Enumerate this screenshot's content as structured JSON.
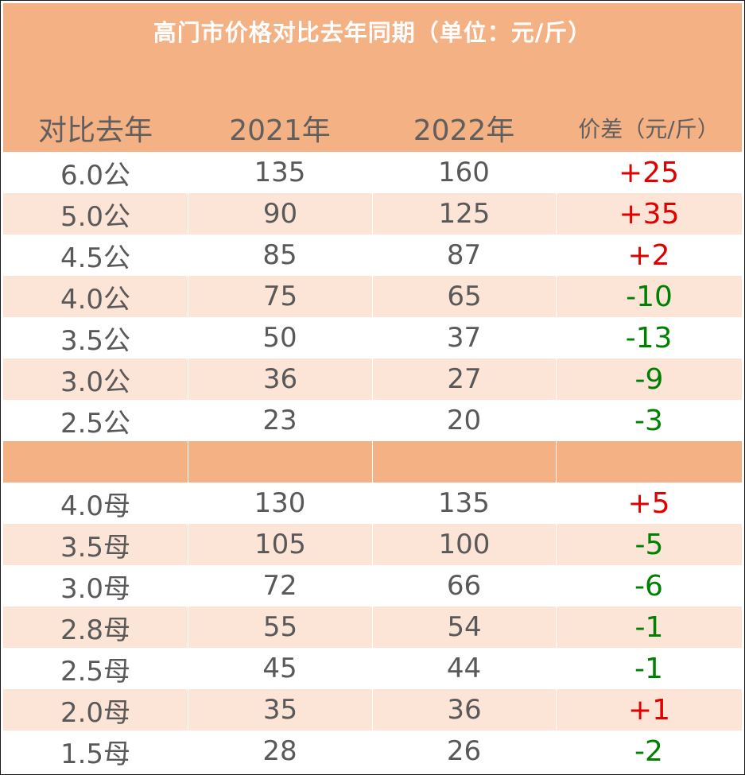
{
  "title": "高门市价格对比去年同期（单位：元/斤）",
  "headers": [
    "对比去年",
    "2021年",
    "2022年",
    "价差（元/斤）"
  ],
  "colors": {
    "header_bg": "#f4b184",
    "alt_row_bg": "#fce4d6",
    "text": "#595959",
    "positive": "#e00000",
    "negative": "#008000"
  },
  "group1": [
    {
      "spec": "6.0公",
      "y2021": "135",
      "y2022": "160",
      "diff": "+25"
    },
    {
      "spec": "5.0公",
      "y2021": "90",
      "y2022": "125",
      "diff": "+35"
    },
    {
      "spec": "4.5公",
      "y2021": "85",
      "y2022": "87",
      "diff": "+2"
    },
    {
      "spec": "4.0公",
      "y2021": "75",
      "y2022": "65",
      "diff": "-10"
    },
    {
      "spec": "3.5公",
      "y2021": "50",
      "y2022": "37",
      "diff": "-13"
    },
    {
      "spec": "3.0公",
      "y2021": "36",
      "y2022": "27",
      "diff": "-9"
    },
    {
      "spec": "2.5公",
      "y2021": "23",
      "y2022": "20",
      "diff": "-3"
    }
  ],
  "group2": [
    {
      "spec": "4.0母",
      "y2021": "130",
      "y2022": "135",
      "diff": "+5"
    },
    {
      "spec": "3.5母",
      "y2021": "105",
      "y2022": "100",
      "diff": "-5"
    },
    {
      "spec": "3.0母",
      "y2021": "72",
      "y2022": "66",
      "diff": "-6"
    },
    {
      "spec": "2.8母",
      "y2021": "55",
      "y2022": "54",
      "diff": "-1"
    },
    {
      "spec": "2.5母",
      "y2021": "45",
      "y2022": "44",
      "diff": "-1"
    },
    {
      "spec": "2.0母",
      "y2021": "35",
      "y2022": "36",
      "diff": "+1"
    },
    {
      "spec": "1.5母",
      "y2021": "28",
      "y2022": "26",
      "diff": "-2"
    }
  ]
}
